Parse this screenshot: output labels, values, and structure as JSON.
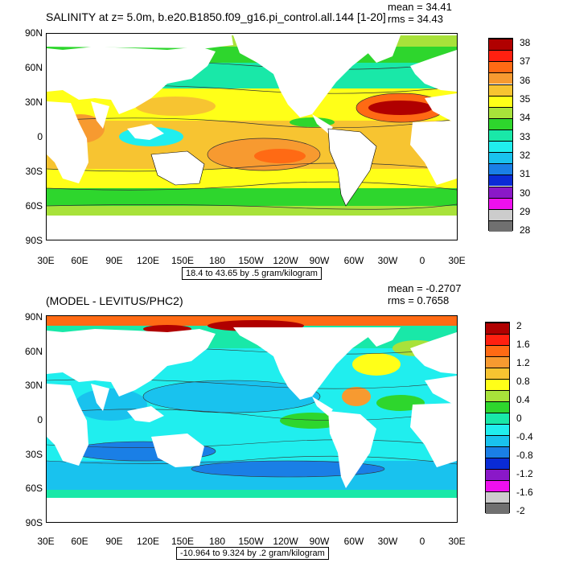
{
  "panel1": {
    "title": "SALINITY at z=   5.0m, b.e20.B1850.f09_g16.pi_control.all.144 [1-20]",
    "mean": "mean = 34.41",
    "rms": "rms = 34.43",
    "range": "18.4 to 43.65 by .5 gram/kilogram",
    "colorbar_labels": [
      "38",
      "37",
      "36",
      "35",
      "34",
      "33",
      "32",
      "31",
      "30",
      "29",
      "28"
    ],
    "colors": [
      "#b00000",
      "#ff2010",
      "#ff6a14",
      "#f79a30",
      "#f7c431",
      "#ffff18",
      "#a8e23a",
      "#2ed62d",
      "#19e8a8",
      "#20eeee",
      "#19c2ee",
      "#1a7fe6",
      "#0a2bd6",
      "#8a18c8",
      "#ee10ee",
      "#cccccc",
      "#707070"
    ]
  },
  "panel2": {
    "title": "(MODEL - LEVITUS/PHC2)",
    "mean": "mean = -0.2707",
    "rms": "rms = 0.7658",
    "range": "-10.964 to 9.324 by .2 gram/kilogram",
    "colorbar_labels": [
      "2",
      "1.6",
      "1.2",
      "0.8",
      "0.4",
      "0",
      "-0.4",
      "-0.8",
      "-1.2",
      "-1.6",
      "-2"
    ],
    "colors": [
      "#b00000",
      "#ff2010",
      "#ff6a14",
      "#f79a30",
      "#f7c431",
      "#ffff18",
      "#a8e23a",
      "#2ed62d",
      "#19e8a8",
      "#20eeee",
      "#19c2ee",
      "#1a7fe6",
      "#0a2bd6",
      "#8a18c8",
      "#ee10ee",
      "#cccccc",
      "#707070"
    ]
  },
  "lat_labels": [
    "90N",
    "60N",
    "30N",
    "0",
    "30S",
    "60S",
    "90S"
  ],
  "lon_labels": [
    "30E",
    "60E",
    "90E",
    "120E",
    "150E",
    "180",
    "150W",
    "120W",
    "90W",
    "60W",
    "30W",
    "0",
    "30E"
  ]
}
